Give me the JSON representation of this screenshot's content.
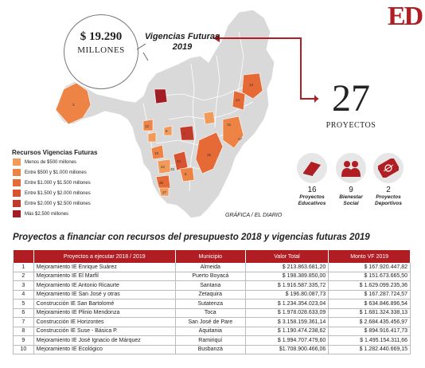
{
  "brand": {
    "logo": "ED",
    "color": "#b01e23"
  },
  "summary": {
    "amount": "$ 19.290",
    "amount_unit": "MILLONES",
    "caption_line1": "Vigencias Futuras",
    "caption_line2": "2019",
    "projects_count": "27",
    "projects_label": "PROYECTOS"
  },
  "categories": [
    {
      "icon": "book-icon",
      "count": "16",
      "label_line1": "Proyectos",
      "label_line2": "Educativos"
    },
    {
      "icon": "people-icon",
      "count": "9",
      "label_line1": "Bienestar",
      "label_line2": "Social"
    },
    {
      "icon": "soccer-field-icon",
      "count": "2",
      "label_line1": "Proyectos",
      "label_line2": "Deportivos"
    }
  ],
  "legend": {
    "title": "Recursos Vigencias Futuras",
    "items": [
      {
        "label": "Menos de $500 millones",
        "color": "#f29a5a"
      },
      {
        "label": "Entre $500 y $1.000 millones",
        "color": "#ee8346"
      },
      {
        "label": "Entre $1.000 y $1.500 millones",
        "color": "#e56a36"
      },
      {
        "label": "Entre $1.500 y $2.000 millones",
        "color": "#d85330"
      },
      {
        "label": "Entre $2.000 y $2.500 millones",
        "color": "#c23b2a"
      },
      {
        "label": "Más $2.500 millones",
        "color": "#a31d24"
      }
    ]
  },
  "map": {
    "base_color": "#d9d9d9",
    "region_numbers": [
      "1",
      "2",
      "3",
      "4",
      "5",
      "6",
      "7",
      "8",
      "9",
      "10",
      "11",
      "12",
      "13",
      "14",
      "15",
      "16",
      "17",
      "18",
      "19",
      "20",
      "21",
      "22",
      "23",
      "24",
      "25",
      "26",
      "27"
    ],
    "credit": "GRÁFICA / EL DIARIO"
  },
  "table": {
    "title": "Proyectos a financiar con recursos del presupuesto 2018 y vigencias futuras 2019",
    "headers": [
      "",
      "Proyectos a ejecutar 2018 / 2019",
      "Municipio",
      "Valor Total",
      "Monto VF 2019"
    ],
    "rows": [
      [
        "1",
        "Mejoramiento IE Enrique Suárez",
        "Almeida",
        "$ 213.863.681,20",
        "$ 167.920.447,82"
      ],
      [
        "2",
        "Mejoramiento IE El Marfil",
        "Puerto Boyacá",
        "$ 198.389.850,00",
        "$ 151.673.665,50"
      ],
      [
        "3",
        "Mejoramiento IE Antonio Ricaurte",
        "Santana",
        "$ 1.916.587.335,72",
        "$ 1.629.099.235,36"
      ],
      [
        "4",
        "Mejoramiento IE San José y otras",
        "Zetaquira",
        "$ 196.80.087,73",
        "$ 167.287.724,57"
      ],
      [
        "5",
        "Construcción IE San Bartolomé",
        "Sutatenza",
        "$ 1.234.354.023,04",
        "$ 634.846.896,54"
      ],
      [
        "6",
        "Mejoramiento IE Plinio Mendonza",
        "Toca",
        "$ 1.978.028.633,09",
        "$ 1.681.324.338,13"
      ],
      [
        "7",
        "Construcción IE Horizontes",
        "San José de Pare",
        "$ 3.158.159.361,14",
        "$ 2.684.435.456,97"
      ],
      [
        "8",
        "Construcción IE Suse - Básica P.",
        "Aquitania",
        "$ 1.190.474.238,62",
        "$ 894.916.417,73"
      ],
      [
        "9",
        "Mejoramiento IE José Ignacio de Márquez",
        "Ramiriquí",
        "$ 1.994.707.479,60",
        "$ 1.495.154.311,66"
      ],
      [
        "10",
        "Mejoramiento IE Ecológico",
        "Busbanzá",
        "$1.708.900.466,06",
        "$ 1.282.440.669,15"
      ]
    ]
  }
}
